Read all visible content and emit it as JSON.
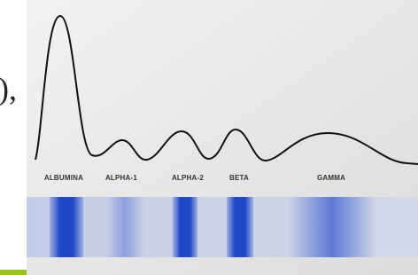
{
  "fragment_text": "),",
  "fractions": [
    {
      "label": "ALBUMINA"
    },
    {
      "label": "ALPHA-1"
    },
    {
      "label": "ALPHA-2"
    },
    {
      "label": "BETA"
    },
    {
      "label": "GAMMA"
    }
  ]
}
